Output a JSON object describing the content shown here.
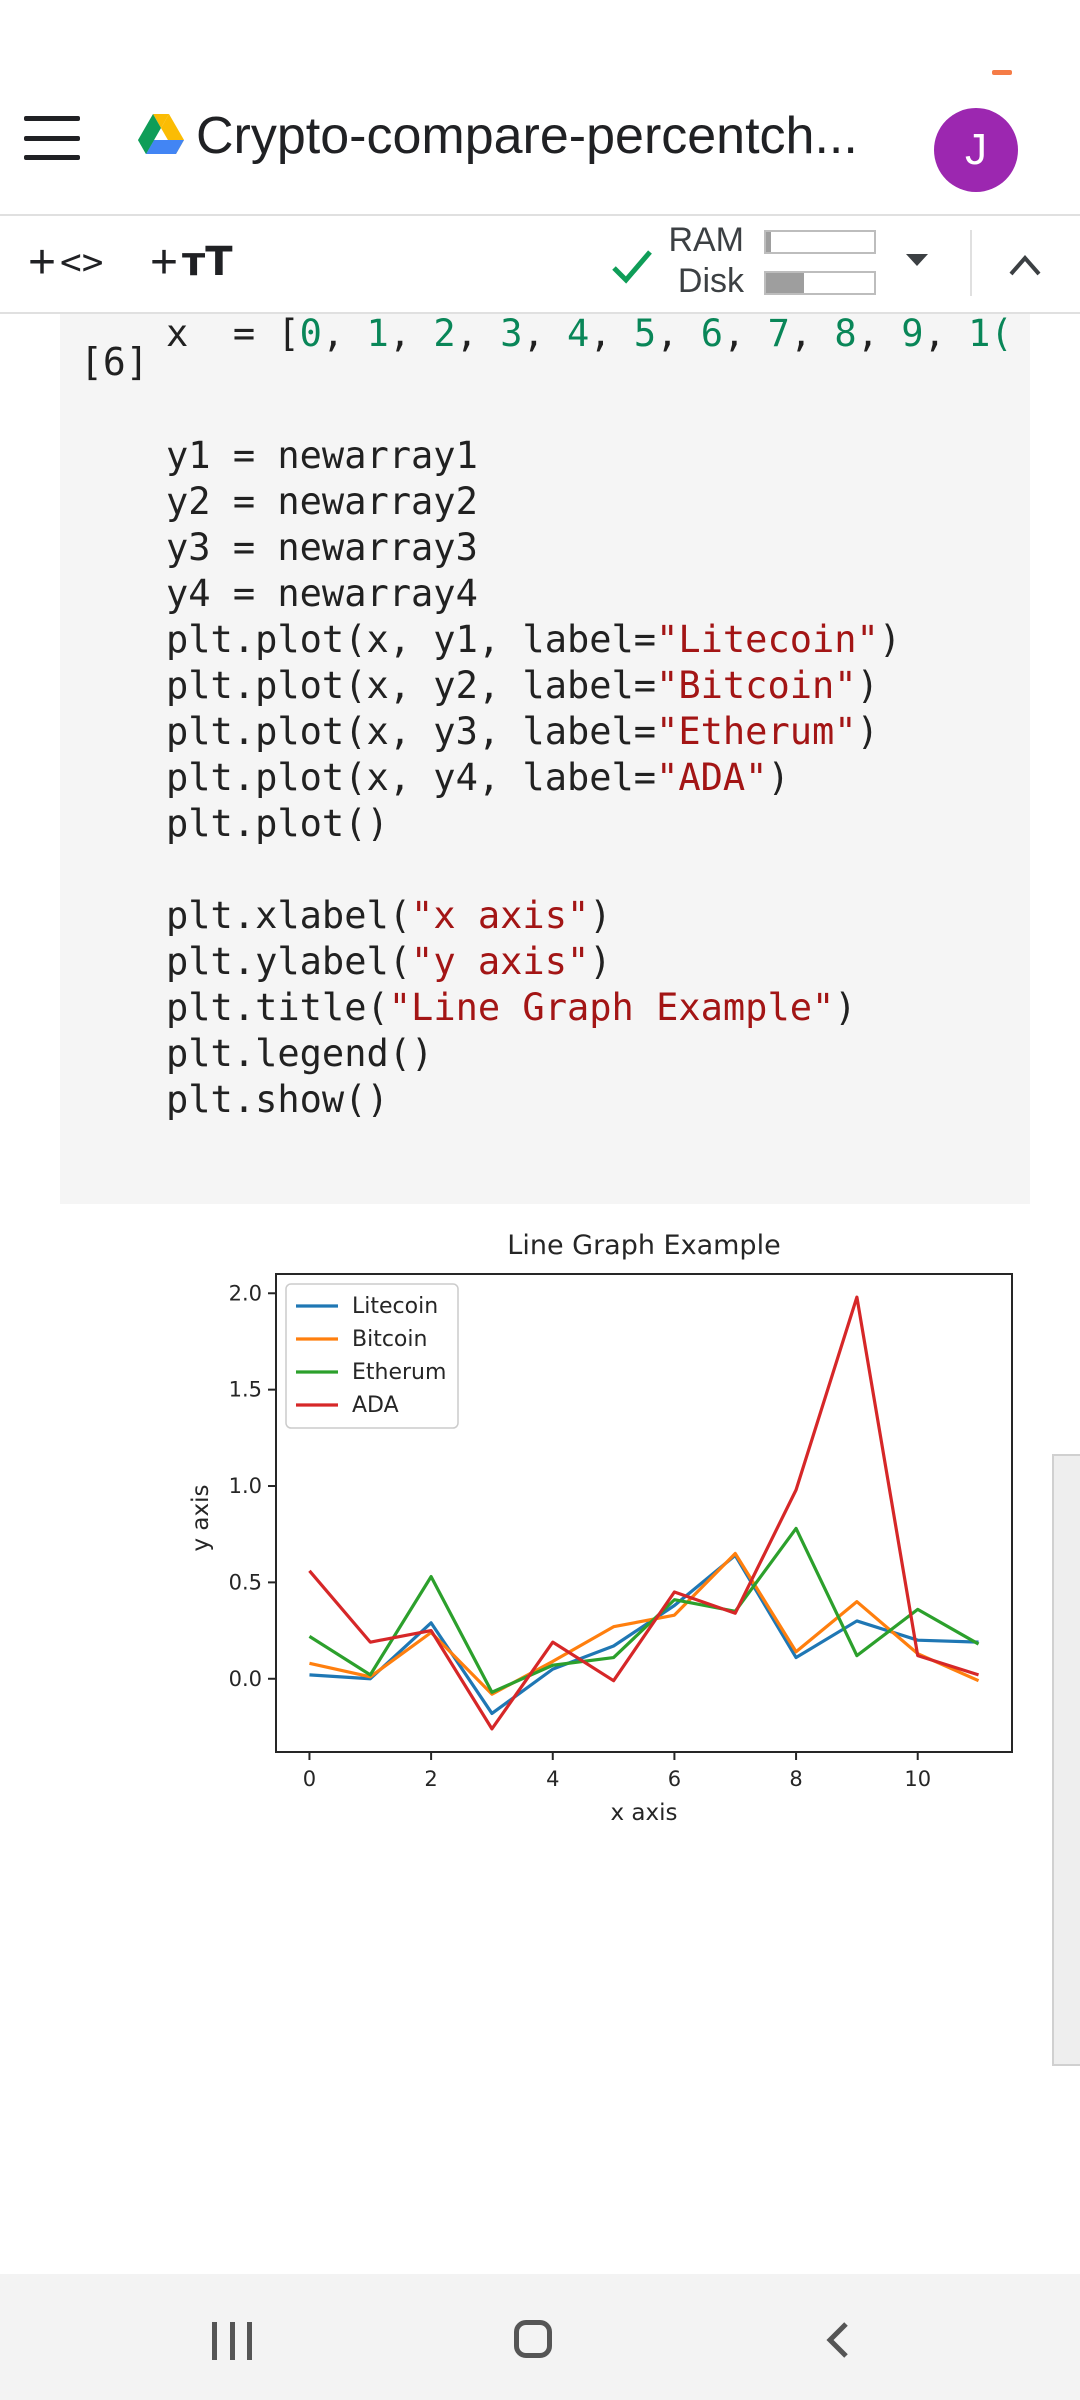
{
  "app": {
    "title": "Crypto-compare-percentch...",
    "avatar_initial": "J",
    "avatar_color": "#9c27b0"
  },
  "toolbar": {
    "add_code_label": "<>",
    "add_text_label": "тТ",
    "ram_label": "RAM",
    "disk_label": "Disk",
    "ram_usage": 0.05,
    "disk_usage": 0.35,
    "status_color": "#0f9d58"
  },
  "cell": {
    "exec_count": "[6]",
    "lines": [
      "y1 = newarray1",
      "y2 = newarray2",
      "y3 = newarray3",
      "y4 = newarray4",
      "plt.plot(x, y1, label=\"Litecoin\")",
      "plt.plot(x, y2, label=\"Bitcoin\")",
      "plt.plot(x, y3, label=\"Etherum\")",
      "plt.plot(x, y4, label=\"ADA\")",
      "plt.plot()",
      "",
      "plt.xlabel(\"x axis\")",
      "plt.ylabel(\"y axis\")",
      "plt.title(\"Line Graph Example\")",
      "plt.legend()",
      "plt.show()"
    ],
    "x_line_prefix": "x  = [",
    "x_line_nums": [
      "0",
      "1",
      "2",
      "3",
      "4",
      "5",
      "6",
      "7",
      "8",
      "9",
      "1("
    ]
  },
  "chart_data": {
    "type": "line",
    "title": "Line Graph Example",
    "xlabel": "x axis",
    "ylabel": "y axis",
    "xlim": [
      -0.55,
      11.55
    ],
    "ylim": [
      -0.38,
      2.1
    ],
    "xticks": [
      0,
      2,
      4,
      6,
      8,
      10
    ],
    "yticks": [
      0.0,
      0.5,
      1.0,
      1.5,
      2.0
    ],
    "ytick_labels": [
      "0.0",
      "0.5",
      "1.0",
      "1.5",
      "2.0"
    ],
    "legend_position": "top-left",
    "grid": false,
    "x": [
      0,
      1,
      2,
      3,
      4,
      5,
      6,
      7,
      8,
      9,
      10,
      11
    ],
    "series": [
      {
        "name": "Litecoin",
        "color": "#1f77b4",
        "values": [
          0.02,
          0.0,
          0.29,
          -0.18,
          0.05,
          0.17,
          0.38,
          0.64,
          0.11,
          0.3,
          0.2,
          0.19
        ]
      },
      {
        "name": "Bitcoin",
        "color": "#ff7f0e",
        "values": [
          0.08,
          0.01,
          0.24,
          -0.08,
          0.09,
          0.27,
          0.33,
          0.65,
          0.14,
          0.4,
          0.13,
          -0.01
        ]
      },
      {
        "name": "Etherum",
        "color": "#2ca02c",
        "values": [
          0.22,
          0.02,
          0.53,
          -0.07,
          0.07,
          0.11,
          0.41,
          0.35,
          0.78,
          0.12,
          0.36,
          0.18
        ]
      },
      {
        "name": "ADA",
        "color": "#d62728",
        "values": [
          0.56,
          0.19,
          0.25,
          -0.26,
          0.19,
          -0.01,
          0.45,
          0.34,
          0.98,
          1.98,
          0.12,
          0.02
        ]
      }
    ]
  }
}
